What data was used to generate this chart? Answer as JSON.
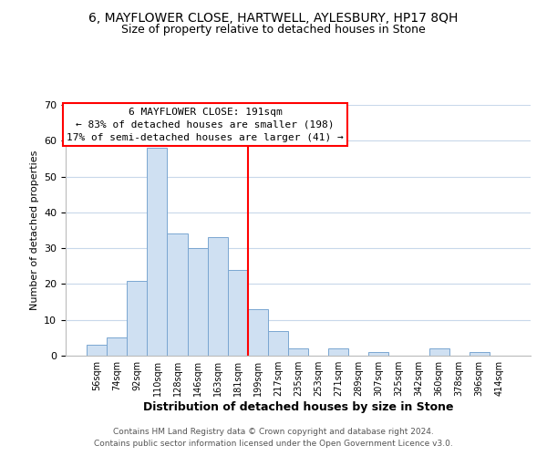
{
  "title": "6, MAYFLOWER CLOSE, HARTWELL, AYLESBURY, HP17 8QH",
  "subtitle": "Size of property relative to detached houses in Stone",
  "xlabel": "Distribution of detached houses by size in Stone",
  "ylabel": "Number of detached properties",
  "footnote1": "Contains HM Land Registry data © Crown copyright and database right 2024.",
  "footnote2": "Contains public sector information licensed under the Open Government Licence v3.0.",
  "bar_labels": [
    "56sqm",
    "74sqm",
    "92sqm",
    "110sqm",
    "128sqm",
    "146sqm",
    "163sqm",
    "181sqm",
    "199sqm",
    "217sqm",
    "235sqm",
    "253sqm",
    "271sqm",
    "289sqm",
    "307sqm",
    "325sqm",
    "342sqm",
    "360sqm",
    "378sqm",
    "396sqm",
    "414sqm"
  ],
  "bar_heights": [
    3,
    5,
    21,
    58,
    34,
    30,
    33,
    24,
    13,
    7,
    2,
    0,
    2,
    0,
    1,
    0,
    0,
    2,
    0,
    1,
    0
  ],
  "bar_color": "#cfe0f2",
  "bar_edge_color": "#7aa6d1",
  "vline_x": 7.5,
  "vline_color": "red",
  "ylim": [
    0,
    70
  ],
  "yticks": [
    0,
    10,
    20,
    30,
    40,
    50,
    60,
    70
  ],
  "annotation_text": "6 MAYFLOWER CLOSE: 191sqm\n← 83% of detached houses are smaller (198)\n17% of semi-detached houses are larger (41) →",
  "annotation_box_color": "white",
  "annotation_box_edge": "red",
  "title_fontsize": 10,
  "subtitle_fontsize": 9,
  "xlabel_fontsize": 9,
  "ylabel_fontsize": 8,
  "annotation_fontsize": 8,
  "footnote_fontsize": 6.5
}
